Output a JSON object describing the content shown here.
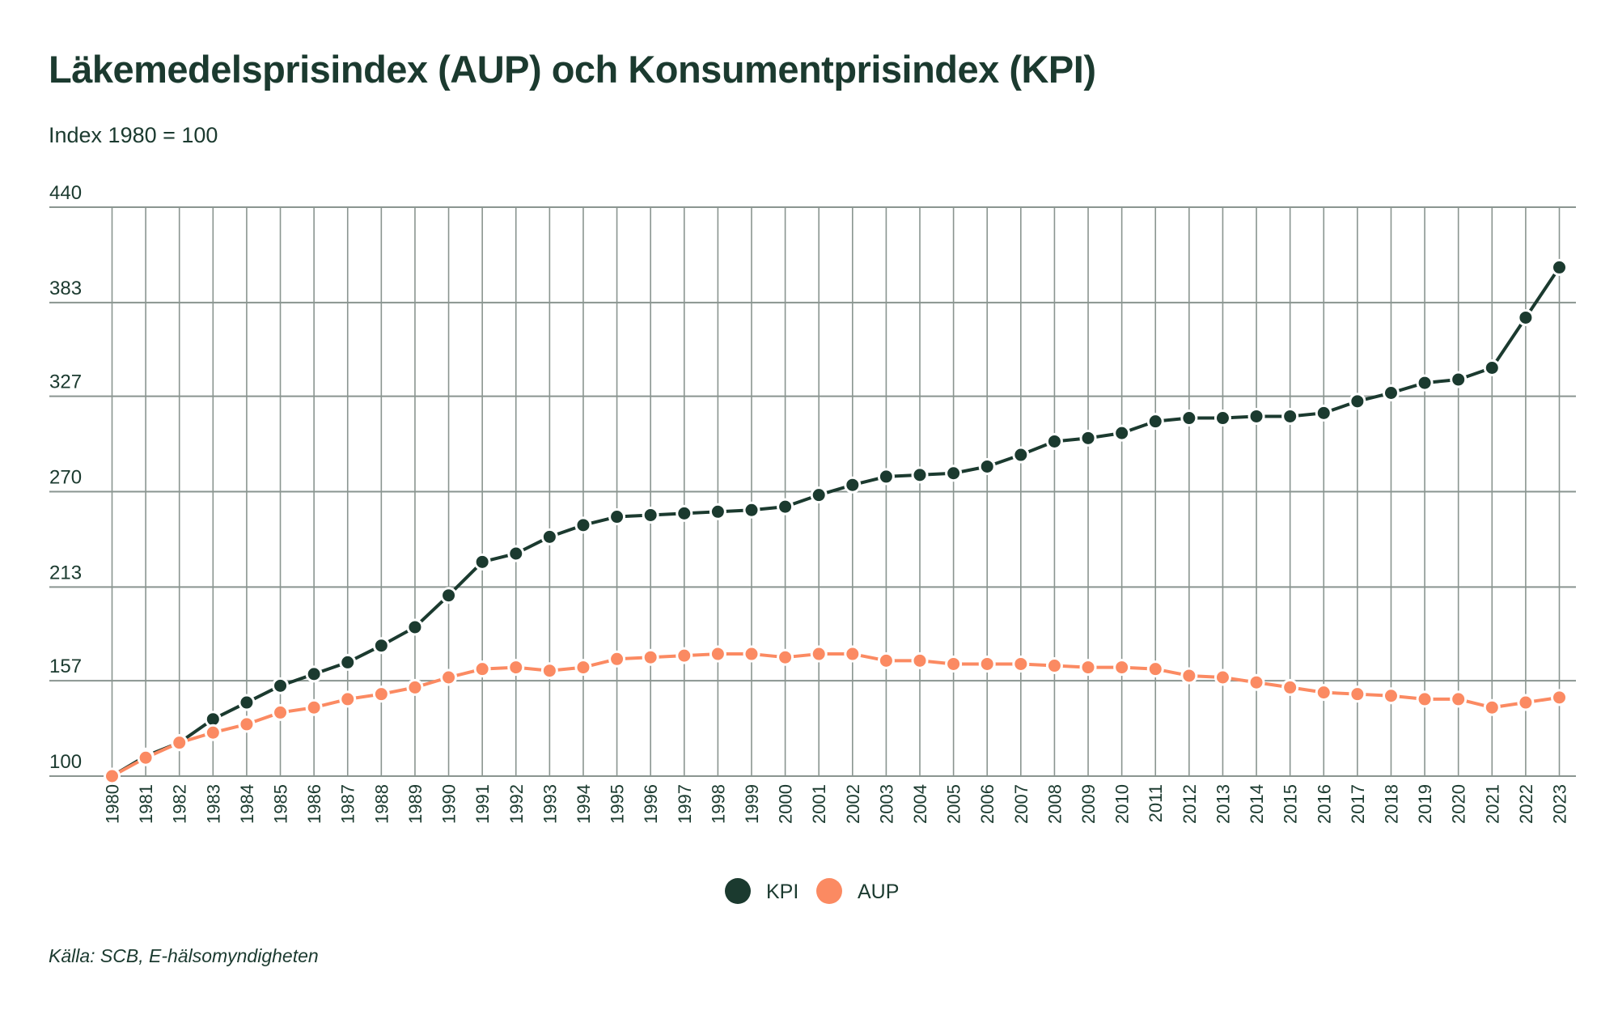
{
  "chart_data": {
    "type": "line",
    "title": "Läkemedelsprisindex (AUP) och Konsumentprisindex (KPI)",
    "subtitle": "Index 1980 = 100",
    "source": "Källa: SCB, E-hälsomyndigheten",
    "xlabel": "",
    "ylabel": "",
    "ylim": [
      100,
      440
    ],
    "yticks": [
      "100",
      "157",
      "213",
      "270",
      "327",
      "383",
      "440"
    ],
    "grid": true,
    "legend_position": "bottom-center",
    "x": [
      1980,
      1981,
      1982,
      1983,
      1984,
      1985,
      1986,
      1987,
      1988,
      1989,
      1990,
      1991,
      1992,
      1993,
      1994,
      1995,
      1996,
      1997,
      1998,
      1999,
      2000,
      2001,
      2002,
      2003,
      2004,
      2005,
      2006,
      2007,
      2008,
      2009,
      2010,
      2011,
      2012,
      2013,
      2014,
      2015,
      2016,
      2017,
      2018,
      2019,
      2020,
      2021,
      2022,
      2023
    ],
    "series": [
      {
        "name": "KPI",
        "color": "#1b3a2f",
        "values": [
          100,
          112,
          120,
          134,
          144,
          154,
          161,
          168,
          178,
          189,
          208,
          228,
          233,
          243,
          250,
          255,
          256,
          257,
          258,
          259,
          261,
          268,
          274,
          279,
          280,
          281,
          285,
          292,
          300,
          302,
          305,
          312,
          314,
          314,
          315,
          315,
          317,
          324,
          329,
          335,
          337,
          344,
          374,
          404
        ]
      },
      {
        "name": "AUP",
        "color": "#fb8a62",
        "values": [
          100,
          111,
          120,
          126,
          131,
          138,
          141,
          146,
          149,
          153,
          159,
          164,
          165,
          163,
          165,
          170,
          171,
          172,
          173,
          173,
          171,
          173,
          173,
          169,
          169,
          167,
          167,
          167,
          166,
          165,
          165,
          164,
          160,
          159,
          156,
          153,
          150,
          149,
          148,
          146,
          146,
          141,
          144,
          147
        ]
      }
    ]
  }
}
